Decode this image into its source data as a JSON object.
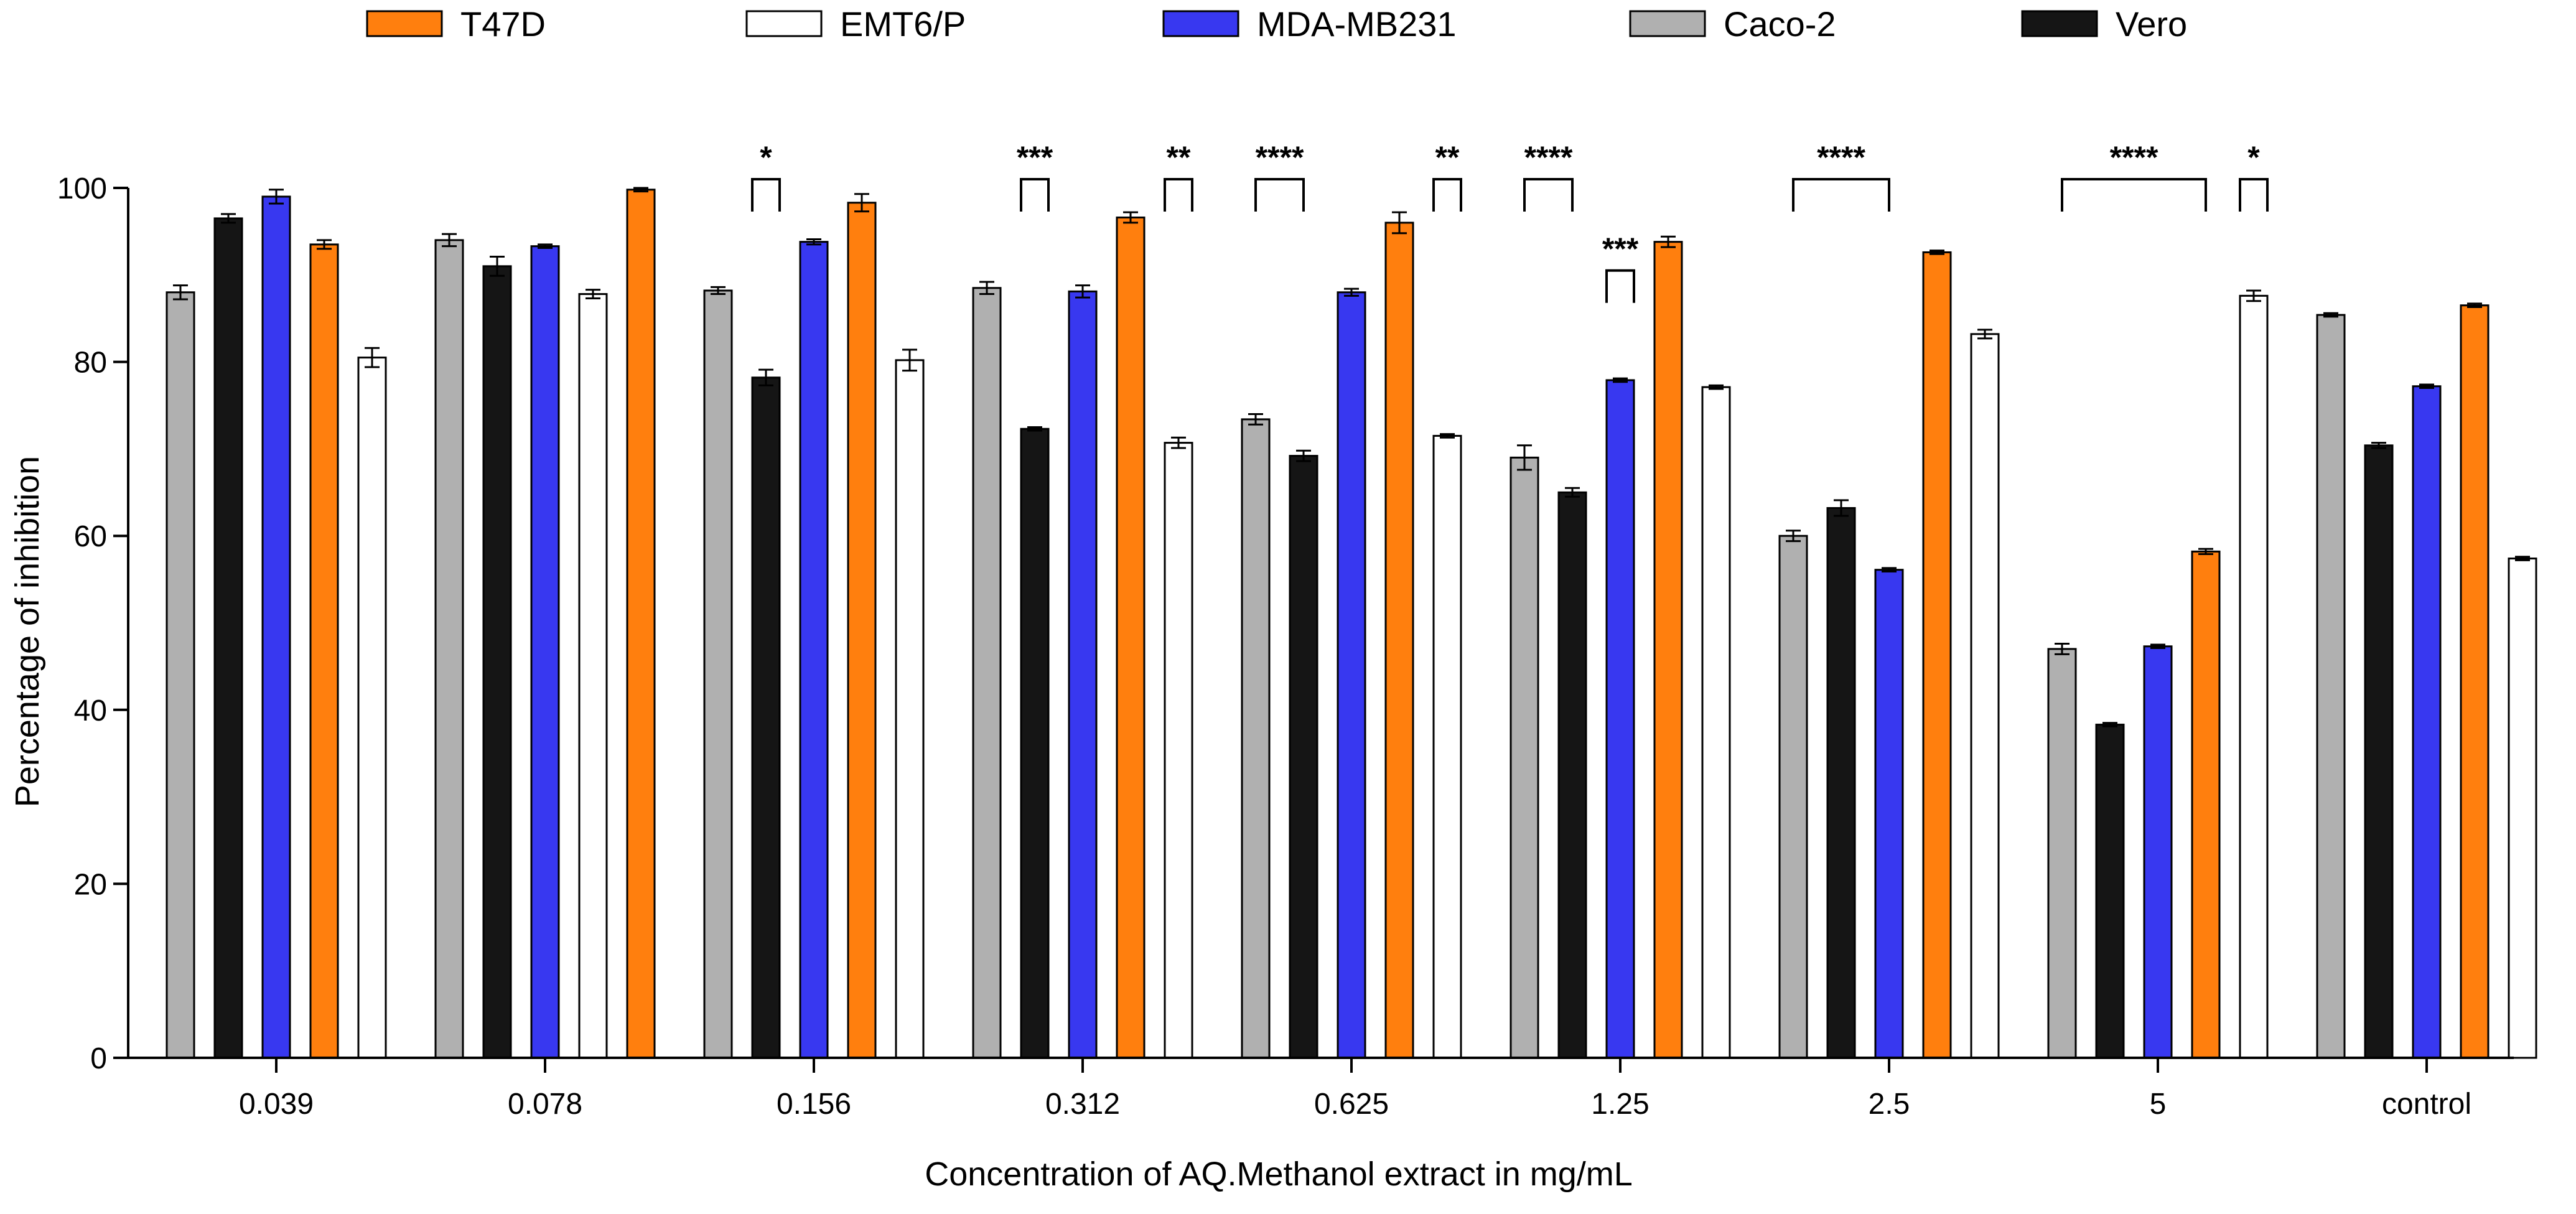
{
  "chart_data": {
    "type": "bar",
    "title": "",
    "xlabel": "Concentration of AQ.Methanol extract in mg/mL",
    "ylabel": "Percentage of inhibition",
    "ylim": [
      0,
      100
    ],
    "yticks": [
      0,
      20,
      40,
      60,
      80,
      100
    ],
    "grid": false,
    "legend_position": "top",
    "legend": [
      {
        "name": "T47D",
        "color": "#ff7f0e"
      },
      {
        "name": "EMT6/P",
        "color": "#ffffff"
      },
      {
        "name": "MDA-MB231",
        "color": "#3838f0"
      },
      {
        "name": "Caco-2",
        "color": "#b0b0b0"
      },
      {
        "name": "Vero",
        "color": "#151515"
      }
    ],
    "categories": [
      "0.039",
      "0.078",
      "0.156",
      "0.312",
      "0.625",
      "1.25",
      "2.5",
      "5",
      "control"
    ],
    "groups": [
      {
        "category": "0.039",
        "bars": [
          {
            "series": "Caco-2",
            "value": 88.0,
            "err": 0.8
          },
          {
            "series": "Vero",
            "value": 96.5,
            "err": 0.5
          },
          {
            "series": "MDA-MB231",
            "value": 99.0,
            "err": 0.8
          },
          {
            "series": "T47D",
            "value": 93.5,
            "err": 0.5
          },
          {
            "series": "EMT6/P",
            "value": 80.5,
            "err": 1.1
          }
        ]
      },
      {
        "category": "0.078",
        "bars": [
          {
            "series": "Caco-2",
            "value": 94.0,
            "err": 0.7
          },
          {
            "series": "Vero",
            "value": 91.0,
            "err": 1.1
          },
          {
            "series": "MDA-MB231",
            "value": 93.3,
            "err": 0.2
          },
          {
            "series": "EMT6/P",
            "value": 87.8,
            "err": 0.5
          },
          {
            "series": "T47D",
            "value": 99.8,
            "err": 0.2
          }
        ]
      },
      {
        "category": "0.156",
        "bars": [
          {
            "series": "Caco-2",
            "value": 88.2,
            "err": 0.4
          },
          {
            "series": "Vero",
            "value": 78.2,
            "err": 0.9
          },
          {
            "series": "MDA-MB231",
            "value": 93.8,
            "err": 0.3
          },
          {
            "series": "T47D",
            "value": 98.3,
            "err": 1.0
          },
          {
            "series": "EMT6/P",
            "value": 80.2,
            "err": 1.2
          }
        ]
      },
      {
        "category": "0.312",
        "bars": [
          {
            "series": "Caco-2",
            "value": 88.5,
            "err": 0.7
          },
          {
            "series": "Vero",
            "value": 72.3,
            "err": 0.2
          },
          {
            "series": "MDA-MB231",
            "value": 88.1,
            "err": 0.7
          },
          {
            "series": "T47D",
            "value": 96.6,
            "err": 0.6
          },
          {
            "series": "EMT6/P",
            "value": 70.7,
            "err": 0.6
          }
        ]
      },
      {
        "category": "0.625",
        "bars": [
          {
            "series": "Caco-2",
            "value": 73.4,
            "err": 0.6
          },
          {
            "series": "Vero",
            "value": 69.2,
            "err": 0.6
          },
          {
            "series": "MDA-MB231",
            "value": 88.0,
            "err": 0.4
          },
          {
            "series": "T47D",
            "value": 96.0,
            "err": 1.2
          },
          {
            "series": "EMT6/P",
            "value": 71.5,
            "err": 0.2
          }
        ]
      },
      {
        "category": "1.25",
        "bars": [
          {
            "series": "Caco-2",
            "value": 69.0,
            "err": 1.4
          },
          {
            "series": "Vero",
            "value": 65.0,
            "err": 0.5
          },
          {
            "series": "MDA-MB231",
            "value": 77.9,
            "err": 0.2
          },
          {
            "series": "T47D",
            "value": 93.8,
            "err": 0.6
          },
          {
            "series": "EMT6/P",
            "value": 77.1,
            "err": 0.2
          }
        ]
      },
      {
        "category": "2.5",
        "bars": [
          {
            "series": "Caco-2",
            "value": 60.0,
            "err": 0.6
          },
          {
            "series": "Vero",
            "value": 63.2,
            "err": 0.9
          },
          {
            "series": "MDA-MB231",
            "value": 56.1,
            "err": 0.2
          },
          {
            "series": "T47D",
            "value": 92.6,
            "err": 0.2
          },
          {
            "series": "EMT6/P",
            "value": 83.2,
            "err": 0.5
          }
        ]
      },
      {
        "category": "5",
        "bars": [
          {
            "series": "Caco-2",
            "value": 47.0,
            "err": 0.6
          },
          {
            "series": "Vero",
            "value": 38.3,
            "err": 0.2
          },
          {
            "series": "MDA-MB231",
            "value": 47.3,
            "err": 0.2
          },
          {
            "series": "T47D",
            "value": 58.2,
            "err": 0.3
          },
          {
            "series": "EMT6/P",
            "value": 87.6,
            "err": 0.6
          }
        ]
      },
      {
        "category": "control",
        "bars": [
          {
            "series": "Caco-2",
            "value": 85.4,
            "err": 0.2
          },
          {
            "series": "Vero",
            "value": 70.4,
            "err": 0.3
          },
          {
            "series": "MDA-MB231",
            "value": 77.2,
            "err": 0.2
          },
          {
            "series": "T47D",
            "value": 86.5,
            "err": 0.2
          },
          {
            "series": "EMT6/P",
            "value": 57.4,
            "err": 0.2
          }
        ]
      }
    ],
    "significance": [
      {
        "label": "*",
        "from_group": 2,
        "from_bar": 1,
        "to_group": 2,
        "to_bar": 1,
        "level": 101
      },
      {
        "label": "***",
        "from_group": 3,
        "from_bar": 1,
        "to_group": 3,
        "to_bar": 1,
        "level": 101
      },
      {
        "label": "**",
        "from_group": 3,
        "from_bar": 4,
        "to_group": 3,
        "to_bar": 4,
        "level": 101
      },
      {
        "label": "****",
        "from_group": 4,
        "from_bar": 0,
        "to_group": 4,
        "to_bar": 1,
        "level": 101
      },
      {
        "label": "**",
        "from_group": 4,
        "from_bar": 4,
        "to_group": 4,
        "to_bar": 4,
        "level": 101
      },
      {
        "label": "****",
        "from_group": 5,
        "from_bar": 0,
        "to_group": 5,
        "to_bar": 1,
        "level": 101
      },
      {
        "label": "***",
        "from_group": 5,
        "from_bar": 2,
        "to_group": 5,
        "to_bar": 2,
        "level": 90.5
      },
      {
        "label": "****",
        "from_group": 6,
        "from_bar": 0,
        "to_group": 6,
        "to_bar": 2,
        "level": 101
      },
      {
        "label": "****",
        "from_group": 7,
        "from_bar": 0,
        "to_group": 7,
        "to_bar": 3,
        "level": 101
      },
      {
        "label": "*",
        "from_group": 7,
        "from_bar": 4,
        "to_group": 7,
        "to_bar": 4,
        "level": 101
      }
    ]
  }
}
